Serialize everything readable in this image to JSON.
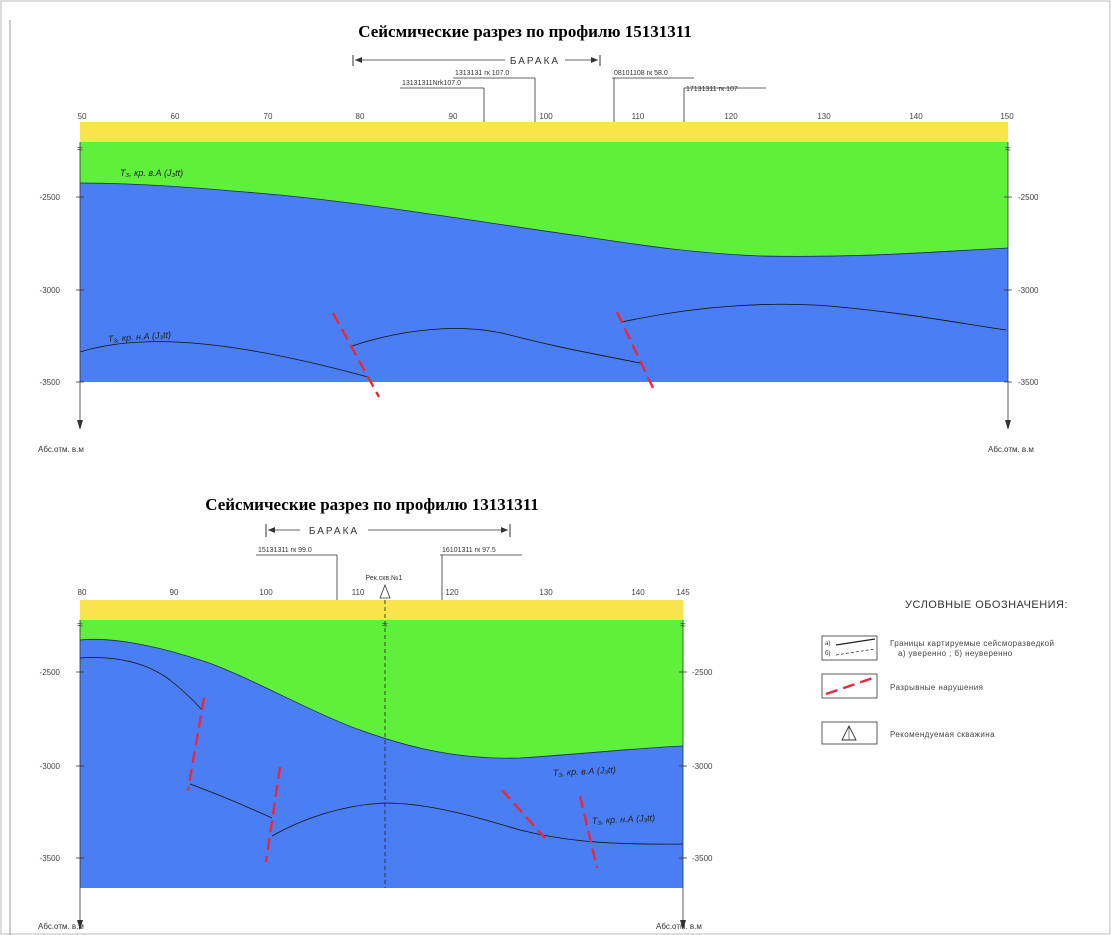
{
  "sections": [
    {
      "title": "Сейсмические разрез по профилю 15131311",
      "baraka_label": "БАРАКА",
      "x_ticks": [
        "50",
        "60",
        "70",
        "80",
        "90",
        "100",
        "110",
        "120",
        "130",
        "140",
        "150"
      ],
      "depth_ticks": [
        "-2500",
        "-3000",
        "-3500"
      ],
      "axis_label": "Абс.отм. в.м",
      "horizon_upper": "Т₃, кр. в.А (J₃tt)",
      "horizon_lower": "Т₃, кр. н.А (J₃tt)",
      "wells": [
        "13131311Nrk107.0",
        "1313131 гк 107.0",
        "08101108 гк 58.0",
        "17131311 гк 107"
      ]
    },
    {
      "title": "Сейсмические разрез по профилю 13131311",
      "baraka_label": "БАРАКА",
      "x_ticks": [
        "80",
        "90",
        "100",
        "110",
        "120",
        "130",
        "140",
        "145"
      ],
      "depth_ticks": [
        "-2500",
        "-3000",
        "-3500"
      ],
      "axis_label": "Абс.отм. в.м",
      "horizon_upper": "Т₃, кр. в.А (J₃tt)",
      "horizon_lower": "Т₃, кр. н.А (J₃tt)",
      "wells": [
        "15131311 гк 99.0",
        "16101311 гк 97.5"
      ],
      "recommended_well": "Рек.скв.№1"
    }
  ],
  "legend": {
    "title": "УСЛОВНЫЕ ОБОЗНАЧЕНИЯ:",
    "items": [
      {
        "label": "Границы картируемые сейсморазведкой",
        "sub": "а) уверенно ; б) неуверенно",
        "key_a": "а)",
        "key_b": "б)"
      },
      {
        "label": "Разрывные нарушения"
      },
      {
        "label": "Рекомендуемая скважина"
      }
    ]
  },
  "colors": {
    "top_band": "#f8e44c",
    "upper_layer": "#5ef03a",
    "lower_layer": "#4a7ef2",
    "fault": "#e8283c"
  }
}
